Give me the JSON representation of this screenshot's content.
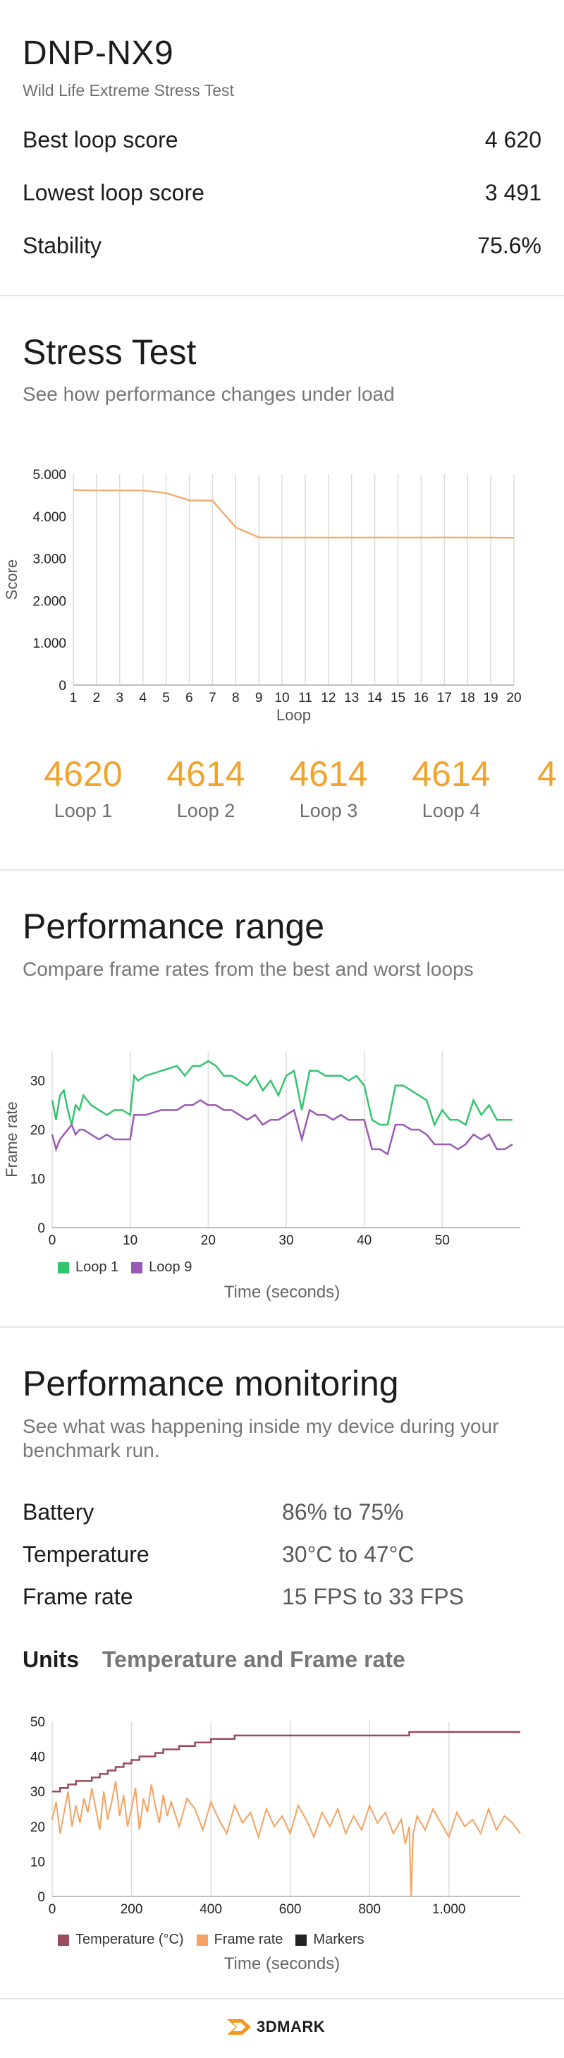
{
  "header": {
    "device": "DNP-NX9",
    "test_name": "Wild Life Extreme Stress Test",
    "rows": [
      {
        "label": "Best loop score",
        "value": "4 620"
      },
      {
        "label": "Lowest loop score",
        "value": "3 491"
      },
      {
        "label": "Stability",
        "value": "75.6%"
      }
    ]
  },
  "stress": {
    "title": "Stress Test",
    "subtitle": "See how performance changes under load",
    "loops": [
      {
        "score": "4620",
        "label": "Loop 1"
      },
      {
        "score": "4614",
        "label": "Loop 2"
      },
      {
        "score": "4614",
        "label": "Loop 3"
      },
      {
        "score": "4614",
        "label": "Loop 4"
      },
      {
        "score": "4",
        "label": ""
      }
    ]
  },
  "range": {
    "title": "Performance range",
    "subtitle": "Compare frame rates from the best and worst loops"
  },
  "monitoring": {
    "title": "Performance monitoring",
    "subtitle": "See what was happening inside my device during your benchmark run.",
    "rows": [
      {
        "label": "Battery",
        "value": "86% to 75%"
      },
      {
        "label": "Temperature",
        "value": "30°C to 47°C"
      },
      {
        "label": "Frame rate",
        "value": "15 FPS to 33 FPS"
      }
    ],
    "units_label": "Units",
    "units_value": "Temperature and Frame rate"
  },
  "footer": {
    "logo_text": "3DMARK"
  },
  "colors": {
    "accent_orange": "#f2a32c",
    "score_line": "#f0b072",
    "loop1_green": "#33c46d",
    "loop9_purple": "#9b59b6",
    "temperature": "#9b4b5a",
    "frame_rate": "#f4a261",
    "markers": "#222222"
  },
  "chart_data": [
    {
      "type": "line",
      "xlabel": "Loop",
      "ylabel": "Score",
      "ylim": [
        0,
        5000
      ],
      "yticks": [
        "0",
        "1.000",
        "2.000",
        "3.000",
        "4.000",
        "5.000"
      ],
      "x": [
        1,
        2,
        3,
        4,
        5,
        6,
        7,
        8,
        9,
        10,
        11,
        12,
        13,
        14,
        15,
        16,
        17,
        18,
        19,
        20
      ],
      "series": [
        {
          "values": [
            4620,
            4614,
            4614,
            4614,
            4550,
            4380,
            4370,
            3740,
            3500,
            3495,
            3495,
            3495,
            3495,
            3498,
            3496,
            3496,
            3498,
            3495,
            3494,
            3491
          ]
        }
      ],
      "grid": "vertical"
    },
    {
      "type": "line",
      "xlabel": "Time (seconds)",
      "ylabel": "Frame rate",
      "xlim": [
        0,
        60
      ],
      "ylim": [
        0,
        36
      ],
      "xticks": [
        0,
        10,
        20,
        30,
        40,
        50
      ],
      "yticks": [
        0,
        10,
        20,
        30
      ],
      "legend": "bottom-left",
      "series": [
        {
          "name": "Loop 1",
          "x": [
            0,
            0.5,
            1,
            1.5,
            2,
            2.5,
            3,
            3.5,
            4,
            5,
            6,
            7,
            8,
            9,
            10,
            10.5,
            11,
            12,
            14,
            16,
            17,
            18,
            19,
            20,
            21,
            22,
            23,
            24,
            25,
            26,
            27,
            28,
            29,
            30,
            31,
            32,
            33,
            34,
            35,
            36,
            37,
            38,
            39,
            40,
            41,
            42,
            43,
            44,
            45,
            46,
            47,
            48,
            49,
            50,
            51,
            52,
            53,
            54,
            55,
            56,
            57,
            58,
            59
          ],
          "values": [
            26,
            22,
            27,
            28,
            24,
            21,
            25,
            24,
            27,
            25,
            24,
            23,
            24,
            24,
            23,
            31,
            30,
            31,
            32,
            33,
            31,
            33,
            33,
            34,
            33,
            31,
            31,
            30,
            29,
            31,
            28,
            30,
            27,
            31,
            32,
            24,
            32,
            32,
            31,
            31,
            31,
            30,
            31,
            29,
            22,
            21,
            21,
            29,
            29,
            28,
            27,
            26,
            21,
            24,
            22,
            22,
            21,
            26,
            23,
            25,
            22,
            22,
            22
          ]
        },
        {
          "name": "Loop 9",
          "x": [
            0,
            0.5,
            1,
            1.5,
            2,
            2.5,
            3,
            3.5,
            4,
            5,
            6,
            7,
            8,
            9,
            10,
            10.5,
            11,
            12,
            14,
            16,
            17,
            18,
            19,
            20,
            21,
            22,
            23,
            24,
            25,
            26,
            27,
            28,
            29,
            30,
            31,
            32,
            33,
            34,
            35,
            36,
            37,
            38,
            39,
            40,
            41,
            42,
            43,
            44,
            45,
            46,
            47,
            48,
            49,
            50,
            51,
            52,
            53,
            54,
            55,
            56,
            57,
            58,
            59
          ],
          "values": [
            19,
            16,
            18,
            19,
            20,
            21,
            19,
            20,
            20,
            19,
            18,
            19,
            18,
            18,
            18,
            23,
            23,
            23,
            24,
            24,
            25,
            25,
            26,
            25,
            25,
            24,
            24,
            23,
            22,
            23,
            21,
            22,
            22,
            23,
            24,
            18,
            24,
            23,
            23,
            22,
            23,
            22,
            22,
            22,
            16,
            16,
            15,
            21,
            21,
            20,
            20,
            19,
            17,
            17,
            17,
            16,
            17,
            19,
            18,
            19,
            16,
            16,
            17
          ]
        }
      ]
    },
    {
      "type": "line",
      "xlabel": "Time (seconds)",
      "xlim": [
        0,
        1180
      ],
      "ylim": [
        0,
        50
      ],
      "xticks": [
        "0",
        "200",
        "400",
        "600",
        "800",
        "1.000"
      ],
      "yticks": [
        0,
        10,
        20,
        30,
        40,
        50
      ],
      "legend": "bottom-left",
      "series": [
        {
          "name": "Temperature (°C)",
          "x": [
            0,
            20,
            40,
            60,
            80,
            100,
            120,
            140,
            160,
            180,
            200,
            220,
            240,
            260,
            280,
            300,
            320,
            340,
            360,
            380,
            400,
            420,
            440,
            460,
            480,
            500,
            560,
            620,
            700,
            800,
            850,
            900,
            1000,
            1100,
            1180
          ],
          "values": [
            30,
            31,
            32,
            33,
            33,
            34,
            35,
            36,
            37,
            38,
            39,
            40,
            40,
            41,
            42,
            42,
            43,
            43,
            44,
            44,
            45,
            45,
            45,
            46,
            46,
            46,
            46,
            46,
            46,
            46,
            46,
            47,
            47,
            47,
            47
          ]
        },
        {
          "name": "Frame rate",
          "x": [
            0,
            10,
            20,
            30,
            40,
            50,
            60,
            70,
            80,
            90,
            100,
            110,
            120,
            130,
            140,
            150,
            160,
            170,
            180,
            190,
            200,
            210,
            220,
            230,
            240,
            250,
            260,
            270,
            280,
            290,
            300,
            320,
            340,
            360,
            380,
            400,
            420,
            440,
            460,
            480,
            500,
            520,
            540,
            560,
            580,
            600,
            620,
            640,
            660,
            680,
            700,
            720,
            740,
            760,
            780,
            800,
            820,
            840,
            860,
            880,
            890,
            900,
            905,
            910,
            920,
            940,
            960,
            980,
            1000,
            1020,
            1040,
            1060,
            1080,
            1100,
            1120,
            1140,
            1160,
            1180
          ],
          "values": [
            22,
            27,
            18,
            24,
            30,
            20,
            26,
            21,
            28,
            24,
            31,
            25,
            19,
            30,
            22,
            27,
            33,
            23,
            29,
            20,
            25,
            31,
            19,
            28,
            24,
            32,
            26,
            21,
            29,
            23,
            27,
            20,
            28,
            25,
            19,
            27,
            22,
            18,
            26,
            21,
            24,
            17,
            25,
            20,
            23,
            18,
            26,
            22,
            17,
            24,
            20,
            25,
            18,
            23,
            19,
            26,
            21,
            24,
            18,
            22,
            15,
            20,
            0,
            18,
            23,
            19,
            25,
            21,
            17,
            24,
            20,
            22,
            18,
            25,
            19,
            23,
            21,
            18
          ]
        },
        {
          "name": "Markers",
          "x": [],
          "values": []
        }
      ]
    }
  ]
}
